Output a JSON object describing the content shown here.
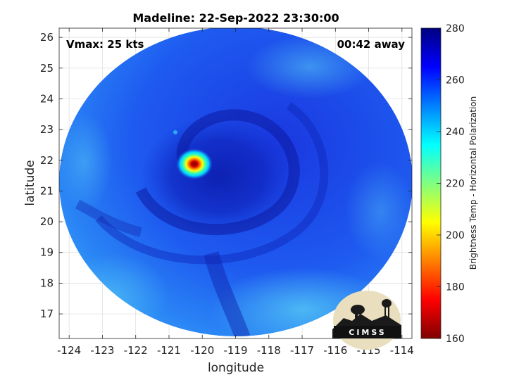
{
  "title": "Madeline: 22-Sep-2022 23:30:00",
  "annotations": {
    "vmax": "Vmax: 25 kts",
    "away": "00:42 away"
  },
  "axes": {
    "xlabel": "longitude",
    "ylabel": "latitude",
    "xlim": [
      -124.3,
      -113.7
    ],
    "ylim": [
      16.2,
      26.3
    ],
    "xticks": [
      -124,
      -123,
      -122,
      -121,
      -120,
      -119,
      -118,
      -117,
      -116,
      -115,
      -114
    ],
    "yticks": [
      17,
      18,
      19,
      20,
      21,
      22,
      23,
      24,
      25,
      26
    ],
    "grid": true
  },
  "map_data": {
    "type": "microwave-brightness-temperature",
    "storm_center": {
      "lon": -120.05,
      "lat": 21.85
    },
    "storm_center_min_temp": 165,
    "background_temp_range": [
      235,
      275
    ],
    "swath_shape": "circular"
  },
  "colorbar": {
    "label": "Brightness Temp - Horizontal Polarization",
    "min": 160,
    "max": 280,
    "ticks": [
      160,
      180,
      200,
      220,
      240,
      260,
      280
    ],
    "colormap": "jet",
    "stops": [
      "#800000",
      "#ff0000",
      "#ff8000",
      "#ffff00",
      "#80ff80",
      "#00ffff",
      "#0080ff",
      "#0000ff",
      "#000080"
    ]
  },
  "logo": {
    "text": "CIMSS",
    "icon": "cimss-logo-icon"
  }
}
